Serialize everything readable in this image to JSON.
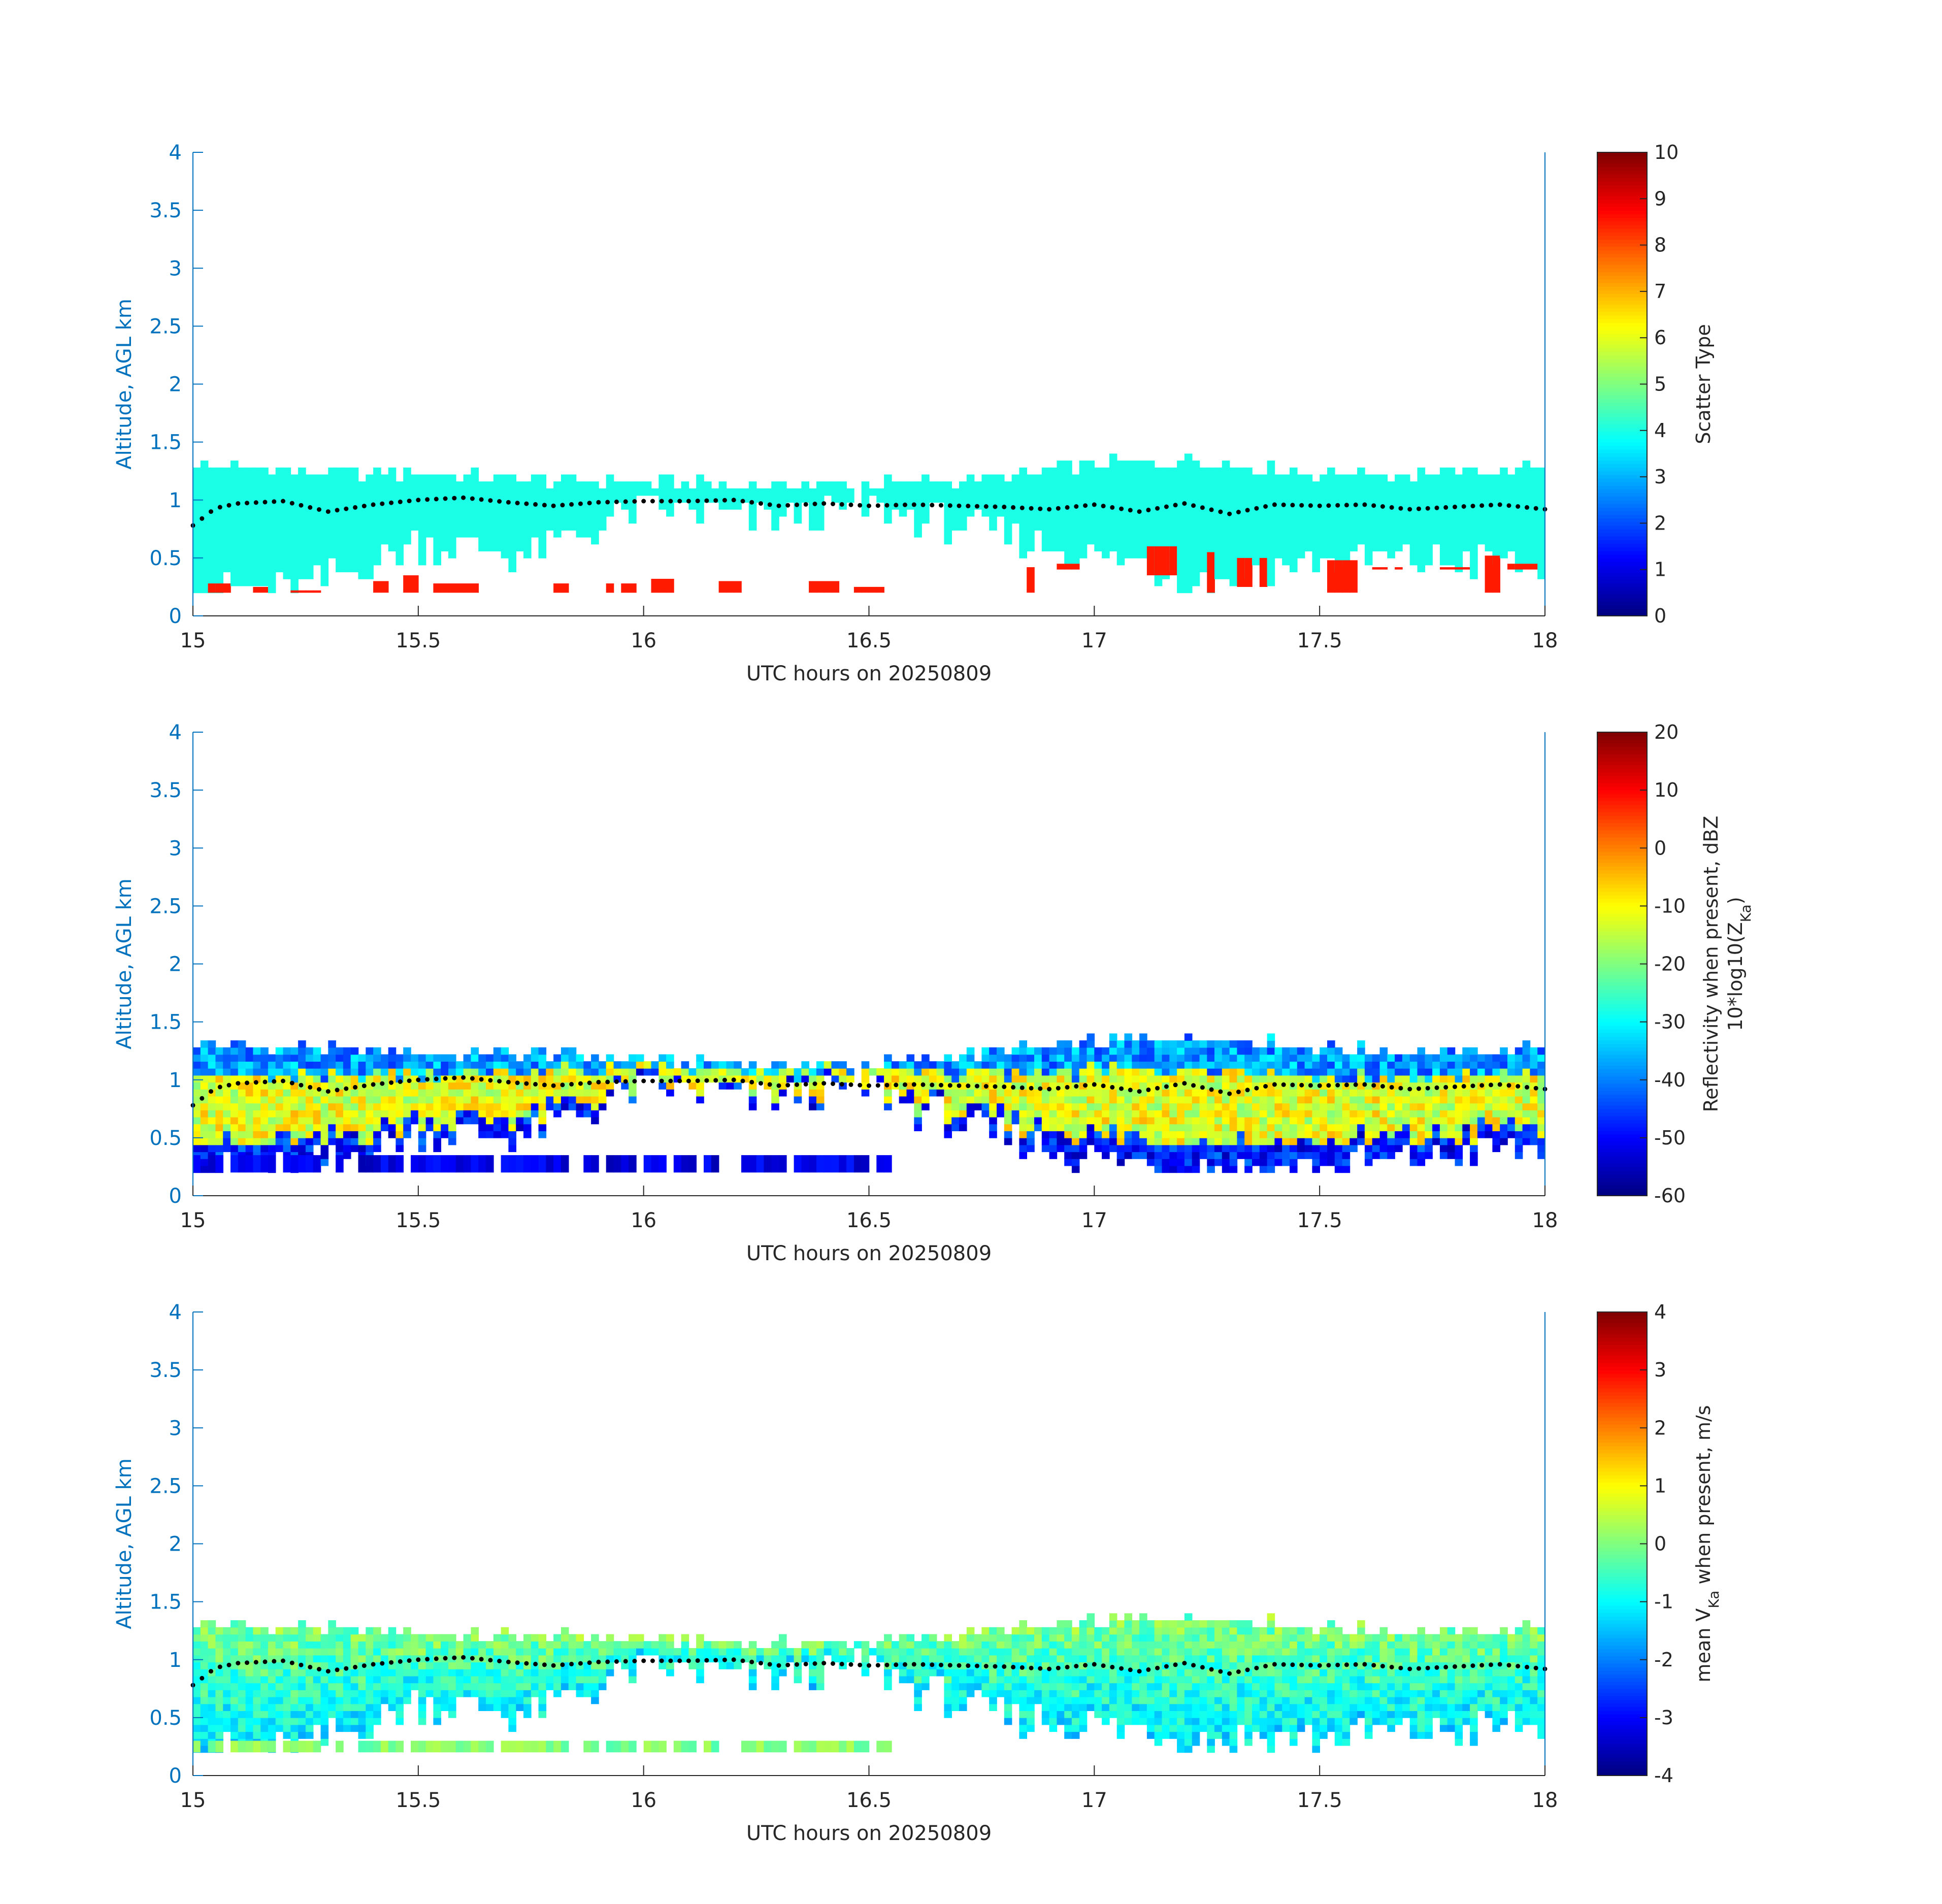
{
  "chart_data": [
    {
      "type": "heatmap",
      "panel": "scatter-type",
      "xlabel": "UTC hours on 20250809",
      "ylabel": "Altitude, AGL km",
      "xlim": [
        15,
        18
      ],
      "ylim": [
        0,
        4
      ],
      "xticks": [
        "15",
        "15.5",
        "16",
        "16.5",
        "17",
        "17.5",
        "18"
      ],
      "yticks": [
        "0",
        "0.5",
        "1",
        "1.5",
        "2",
        "2.5",
        "3",
        "3.5",
        "4"
      ],
      "colorbar": {
        "label": "Scatter Type",
        "range": [
          0,
          10
        ],
        "ticks": [
          "0",
          "1",
          "2",
          "3",
          "4",
          "5",
          "6",
          "7",
          "8",
          "9",
          "10"
        ],
        "colormap": "jet"
      },
      "cloud_layer": {
        "hour": [
          15.0,
          15.25,
          15.5,
          15.75,
          16.0,
          16.25,
          16.5,
          16.75,
          17.0,
          17.25,
          17.5,
          17.75,
          18.0
        ],
        "top_km": [
          1.28,
          1.2,
          1.2,
          1.15,
          1.12,
          1.1,
          1.1,
          1.15,
          1.28,
          1.3,
          1.2,
          1.2,
          1.25
        ],
        "bottom_km": [
          0.2,
          0.2,
          0.6,
          0.5,
          0.9,
          0.8,
          0.9,
          0.7,
          0.5,
          0.3,
          0.45,
          0.45,
          0.4
        ],
        "value": 4
      },
      "lower_layer": {
        "hour": [
          15.05,
          15.15,
          15.25,
          15.4,
          15.5,
          15.55,
          15.6,
          15.8,
          15.95,
          16.05,
          16.2,
          16.4,
          16.5,
          16.85,
          16.95,
          17.15,
          17.25,
          17.35,
          17.55,
          17.65,
          17.8,
          17.9,
          17.95
        ],
        "top_km": [
          0.28,
          0.25,
          0.22,
          0.3,
          0.35,
          0.28,
          0.28,
          0.28,
          0.28,
          0.32,
          0.3,
          0.3,
          0.25,
          0.42,
          0.45,
          0.6,
          0.55,
          0.5,
          0.48,
          0.42,
          0.42,
          0.52,
          0.45
        ],
        "bottom_km": [
          0.2,
          0.2,
          0.2,
          0.2,
          0.2,
          0.2,
          0.2,
          0.2,
          0.2,
          0.2,
          0.2,
          0.2,
          0.2,
          0.2,
          0.4,
          0.35,
          0.2,
          0.25,
          0.2,
          0.4,
          0.4,
          0.2,
          0.4
        ],
        "value": 8.5
      },
      "dotted_series": {
        "marker": "dot",
        "color": "#000000",
        "hour": [
          15.0,
          15.05,
          15.1,
          15.2,
          15.3,
          15.4,
          15.5,
          15.6,
          15.7,
          15.8,
          15.9,
          16.0,
          16.1,
          16.2,
          16.3,
          16.4,
          16.5,
          16.6,
          16.7,
          16.8,
          16.9,
          17.0,
          17.1,
          17.2,
          17.3,
          17.4,
          17.5,
          17.6,
          17.7,
          17.8,
          17.9,
          18.0
        ],
        "altitude_km": [
          0.78,
          0.93,
          0.97,
          0.99,
          0.9,
          0.96,
          1.0,
          1.02,
          0.98,
          0.95,
          0.98,
          0.99,
          0.99,
          1.0,
          0.95,
          0.97,
          0.95,
          0.96,
          0.95,
          0.94,
          0.92,
          0.96,
          0.9,
          0.97,
          0.88,
          0.96,
          0.95,
          0.96,
          0.92,
          0.94,
          0.96,
          0.92
        ]
      }
    },
    {
      "type": "heatmap",
      "panel": "reflectivity",
      "xlabel": "UTC hours on 20250809",
      "ylabel": "Altitude, AGL km",
      "xlim": [
        15,
        18
      ],
      "ylim": [
        0,
        4
      ],
      "xticks": [
        "15",
        "15.5",
        "16",
        "16.5",
        "17",
        "17.5",
        "18"
      ],
      "yticks": [
        "0",
        "0.5",
        "1",
        "1.5",
        "2",
        "2.5",
        "3",
        "3.5",
        "4"
      ],
      "colorbar": {
        "label": "Reflectivity when present, dBZ",
        "label2_main": "10*log10(Z",
        "label2_sub": "Ka",
        "label2_end": ")",
        "range": [
          -60,
          20
        ],
        "ticks": [
          "-60",
          "-50",
          "-40",
          "-30",
          "-20",
          "-10",
          "0",
          "10",
          "20"
        ],
        "colormap": "jet"
      },
      "cloud_layer": {
        "hour": [
          15.0,
          15.1,
          15.25,
          15.5,
          15.75,
          16.0,
          16.25,
          16.5,
          16.75,
          17.0,
          17.25,
          17.5,
          17.75,
          18.0
        ],
        "top_km": [
          1.3,
          1.25,
          1.25,
          1.2,
          1.2,
          1.15,
          1.1,
          1.1,
          1.2,
          1.3,
          1.35,
          1.25,
          1.2,
          1.25
        ],
        "bottom_km": [
          0.2,
          0.2,
          0.2,
          0.5,
          0.5,
          0.9,
          0.8,
          0.9,
          0.5,
          0.3,
          0.2,
          0.2,
          0.3,
          0.4
        ],
        "dBZ_top": -38,
        "dBZ_core": -12,
        "dBZ_base": -48
      },
      "lower_layer": {
        "hour_start": 15.0,
        "hour_end": 16.55,
        "top_km": 0.35,
        "bottom_km": 0.2,
        "dBZ": -52
      }
    },
    {
      "type": "heatmap",
      "panel": "mean-velocity",
      "xlabel": "UTC hours on 20250809",
      "ylabel": "Altitude, AGL km",
      "xlim": [
        15,
        18
      ],
      "ylim": [
        0,
        4
      ],
      "xticks": [
        "15",
        "15.5",
        "16",
        "16.5",
        "17",
        "17.5",
        "18"
      ],
      "yticks": [
        "0",
        "0.5",
        "1",
        "1.5",
        "2",
        "2.5",
        "3",
        "3.5",
        "4"
      ],
      "colorbar": {
        "label_pre": "mean V",
        "label_sub": "Ka",
        "label_post": " when present, m/s",
        "range": [
          -4,
          4
        ],
        "ticks": [
          "-4",
          "-3",
          "-2",
          "-1",
          "0",
          "1",
          "2",
          "3",
          "4"
        ],
        "colormap": "jet"
      },
      "cloud_layer": {
        "hour": [
          15.0,
          15.25,
          15.5,
          15.75,
          16.0,
          16.25,
          16.5,
          16.75,
          17.0,
          17.25,
          17.5,
          17.75,
          18.0
        ],
        "top_km": [
          1.28,
          1.25,
          1.2,
          1.18,
          1.15,
          1.12,
          1.12,
          1.2,
          1.3,
          1.35,
          1.25,
          1.2,
          1.25
        ],
        "bottom_km": [
          0.2,
          0.2,
          0.6,
          0.5,
          0.9,
          0.8,
          0.9,
          0.5,
          0.4,
          0.3,
          0.3,
          0.35,
          0.4
        ],
        "velocity_top_ms": 0.0,
        "velocity_base_ms": -1.2
      },
      "lower_layer": {
        "hour_start": 15.0,
        "hour_end": 16.55,
        "top_km": 0.3,
        "bottom_km": 0.2,
        "velocity_ms": 0.0
      }
    }
  ]
}
